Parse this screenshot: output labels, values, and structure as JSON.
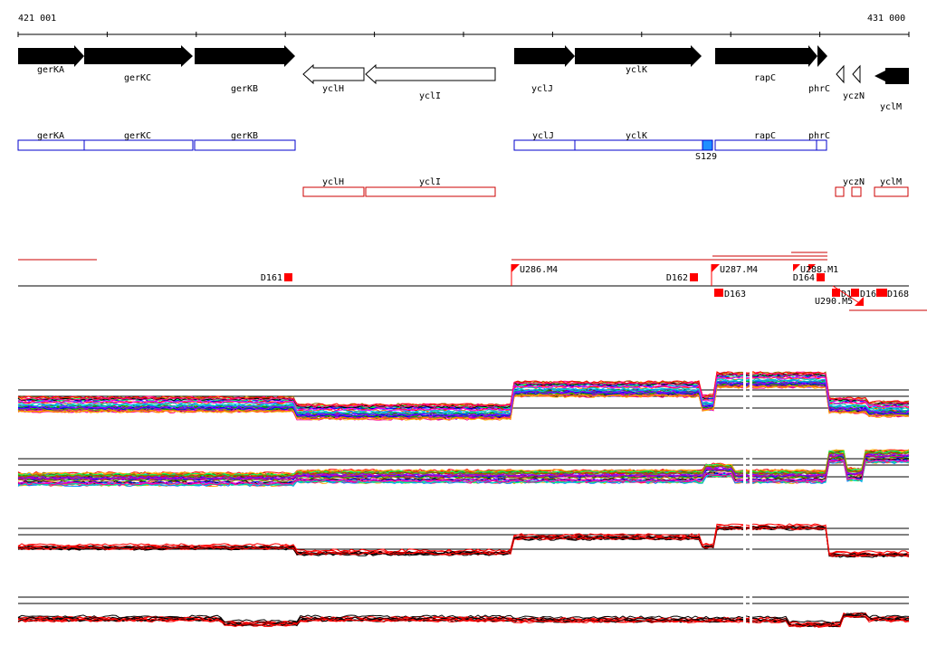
{
  "coords": {
    "start": "421 001",
    "end": "431 000"
  },
  "colors": {
    "gene_fill": "#000000",
    "annot_blue": "#0000cc",
    "annot_blue_fill": "#1e8fff",
    "annot_red": "#cc0000",
    "marker_red": "#ff0000",
    "track_black": "#000000",
    "track_red": "#ff0000",
    "gap_white": "#ffffff"
  },
  "genes_forward": [
    "gerKA",
    "gerKC",
    "gerKB",
    "yclJ",
    "yclK",
    "rapC",
    "phrC"
  ],
  "genes_reverse": [
    "yclH",
    "yclI",
    "yczN",
    "yclM"
  ],
  "blue_annotations": [
    "gerKA",
    "gerKC",
    "gerKB",
    "yclJ",
    "yclK",
    "rapC",
    "phrC"
  ],
  "blue_highlight_label": "S129",
  "red_annotations": [
    "yclH",
    "yclI",
    "yczN",
    "yclM"
  ],
  "features": {
    "D161": "D161",
    "U286": "U286.M4",
    "D162": "D162",
    "U287": "U287.M4",
    "D163": "D163",
    "D164": "D164",
    "cluster": "U288.M1",
    "D1": "D1",
    "D16": "D16",
    "D168": "D168",
    "U290": "U290.M5"
  },
  "tracks": [
    {
      "name": "track-1",
      "style": "multicolor"
    },
    {
      "name": "track-2",
      "style": "multicolor"
    },
    {
      "name": "track-3",
      "style": "black-red"
    },
    {
      "name": "track-4",
      "style": "black-red"
    }
  ]
}
